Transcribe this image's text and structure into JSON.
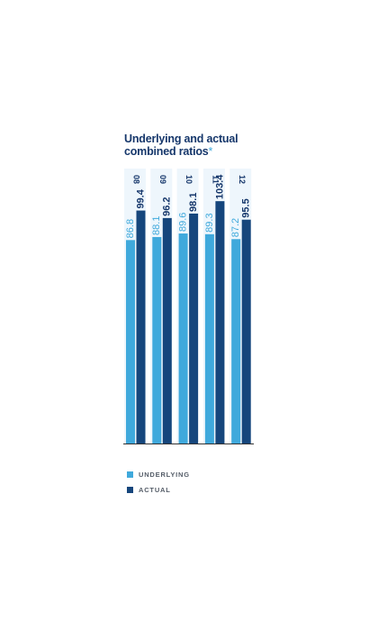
{
  "title": {
    "line1": "Underlying and actual",
    "line2": "combined ratios",
    "asterisk": "*"
  },
  "chart_data": {
    "type": "bar",
    "title": "Underlying and actual combined ratios*",
    "categories": [
      "08",
      "09",
      "10",
      "11",
      "12"
    ],
    "series": [
      {
        "name": "UNDERLYING",
        "values": [
          86.8,
          88.1,
          89.6,
          89.3,
          87.2
        ],
        "color": "#3fa9dc"
      },
      {
        "name": "ACTUAL",
        "values": [
          99.4,
          96.2,
          98.1,
          103.4,
          95.5
        ],
        "color": "#16467c"
      }
    ],
    "ylim": [
      0,
      115
    ],
    "grid": false,
    "legend_position": "bottom-left",
    "category_band_color": "#eef6fc",
    "label_colors": {
      "underlying": "#3fa9dc",
      "actual": "#16376b"
    }
  },
  "legend": [
    {
      "label": "UNDERLYING",
      "color": "#3fa9dc"
    },
    {
      "label": "ACTUAL",
      "color": "#16467c"
    }
  ]
}
